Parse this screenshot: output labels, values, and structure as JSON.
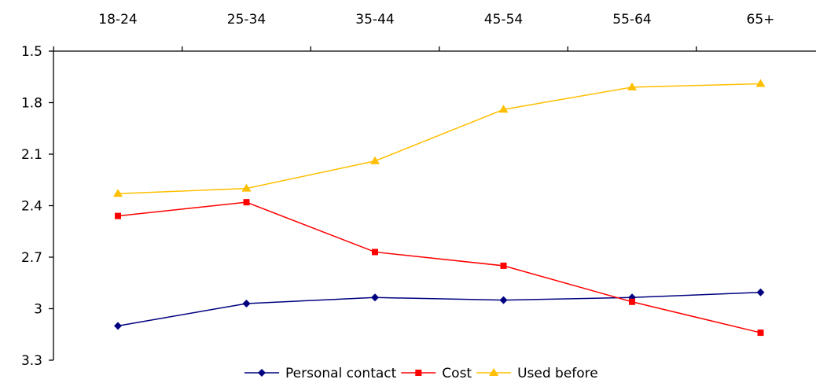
{
  "chart_data": {
    "type": "line",
    "categories": [
      "18-24",
      "25-34",
      "35-44",
      "45-54",
      "55-64",
      "65+"
    ],
    "series": [
      {
        "name": "Personal contact",
        "color": "#000080",
        "marker": "diamond",
        "values": [
          3.1,
          2.97,
          2.935,
          2.95,
          2.935,
          2.905
        ]
      },
      {
        "name": "Cost",
        "color": "#ff0000",
        "marker": "square",
        "values": [
          2.46,
          2.38,
          2.67,
          2.75,
          2.96,
          3.14
        ]
      },
      {
        "name": "Used before",
        "color": "#ffbf00",
        "marker": "triangle",
        "values": [
          2.33,
          2.3,
          2.14,
          1.84,
          1.71,
          1.69
        ]
      }
    ],
    "y_ticks": [
      "1.5",
      "1.8",
      "2.1",
      "2.4",
      "2.7",
      "3",
      "3.3"
    ],
    "ylim": [
      1.5,
      3.3
    ],
    "y_reversed": true,
    "x_axis_position": "top",
    "grid": false,
    "legend_position": "bottom"
  }
}
